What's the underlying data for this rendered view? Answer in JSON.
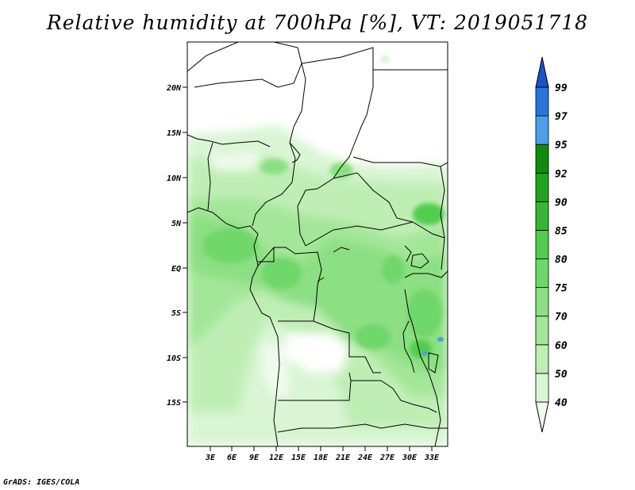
{
  "title": "Relative humidity at 700hPa [%], VT: 2019051718",
  "footer": "GrADS: IGES/COLA",
  "map": {
    "lat_ticks": [
      "20N",
      "15N",
      "10N",
      "5N",
      "EQ",
      "5S",
      "10S",
      "15S"
    ],
    "lon_ticks": [
      "3E",
      "6E",
      "9E",
      "12E",
      "15E",
      "18E",
      "21E",
      "24E",
      "27E",
      "30E",
      "33E"
    ]
  },
  "colorbar": {
    "labels": [
      "40",
      "50",
      "60",
      "70",
      "75",
      "80",
      "85",
      "90",
      "92",
      "95",
      "97",
      "99"
    ],
    "colors": [
      "#f0fbee",
      "#d9f5d4",
      "#bfeeb5",
      "#a4e699",
      "#8cdf83",
      "#6fd76a",
      "#52cc4f",
      "#3ab437",
      "#24a021",
      "#118a10",
      "#4f9ee6",
      "#2c74d8",
      "#1c54c4"
    ]
  }
}
